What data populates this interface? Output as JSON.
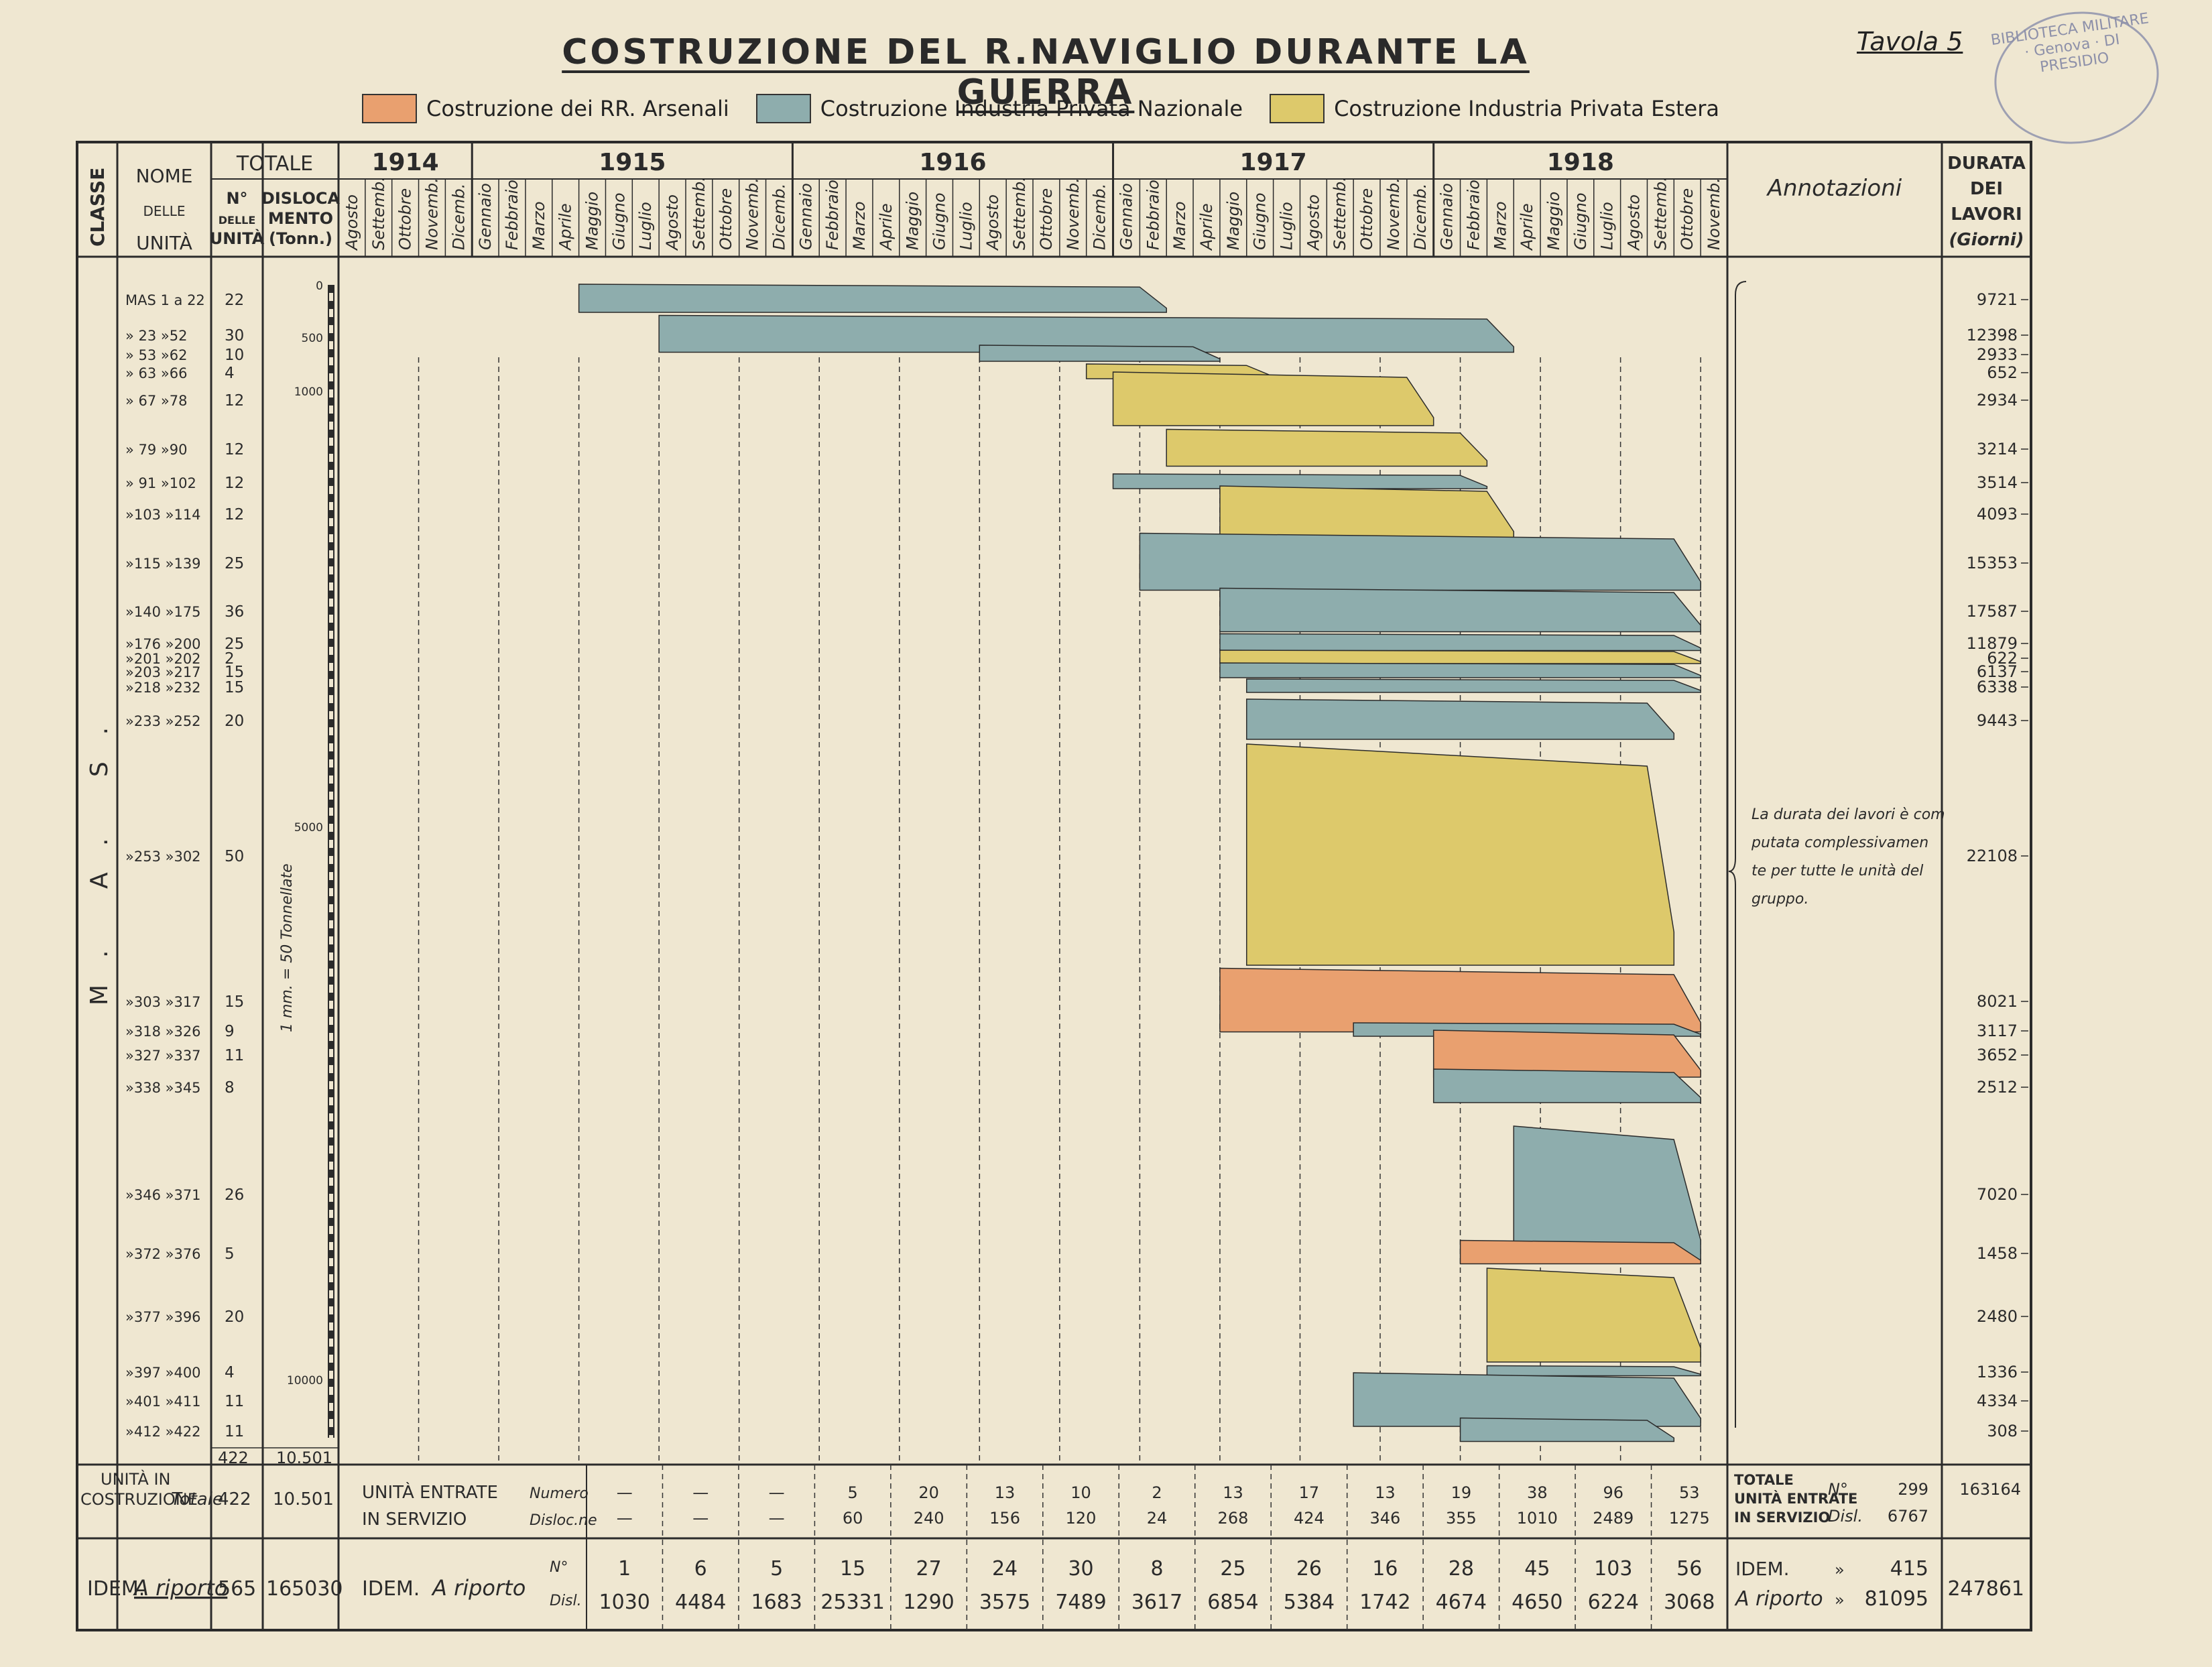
{
  "title": "COSTRUZIONE DEL R.NAVIGLIO DURANTE LA GUERRA",
  "tavola": "Tavola 5",
  "stamp_text": "BIBLIOTECA MILITARE · Genova · DI PRESIDIO",
  "legend": [
    {
      "label": "Costruzione dei RR. Arsenali",
      "color": "#e9a06f"
    },
    {
      "label": "Costruzione Industria Privata Nazionale",
      "color": "#8eadad"
    },
    {
      "label": "Costruzione Industria Privata Estera",
      "color": "#ddc96b"
    }
  ],
  "header": {
    "classe": "CLASSE",
    "nome": "NOME",
    "delle": "DELLE",
    "unita": "UNITÀ",
    "totale": "TOTALE",
    "n_delle_unita": "N°\nDELLE\nUNITÀ",
    "dislocamento": "DISLOCA\nMENTO\n(Tonn.)",
    "annotazioni": "Annotazioni",
    "durata": "DURATA\nDEI\nLAVORI\n(Giorni)"
  },
  "years": [
    "1914",
    "1915",
    "1916",
    "1917",
    "1918"
  ],
  "months": [
    "Agosto",
    "Settemb.",
    "Ottobre",
    "Novemb.",
    "Dicemb.",
    "Gennaio",
    "Febbraio",
    "Marzo",
    "Aprile",
    "Maggio",
    "Giugno",
    "Luglio",
    "Agosto",
    "Settemb.",
    "Ottobre",
    "Novemb.",
    "Dicemb.",
    "Gennaio",
    "Febbraio",
    "Marzo",
    "Aprile",
    "Maggio",
    "Giugno",
    "Luglio",
    "Agosto",
    "Settemb.",
    "Ottobre",
    "Novemb.",
    "Dicemb.",
    "Gennaio",
    "Febbraio",
    "Marzo",
    "Aprile",
    "Maggio",
    "Giugno",
    "Luglio",
    "Agosto",
    "Settemb.",
    "Ottobre",
    "Novemb.",
    "Dicemb.",
    "Gennaio",
    "Febbraio",
    "Marzo",
    "Aprile",
    "Maggio",
    "Giugno",
    "Luglio",
    "Agosto",
    "Settemb.",
    "Ottobre",
    "Novemb."
  ],
  "classe_label": "M. A. S.",
  "units": [
    {
      "name": "MAS 1 a 22",
      "n": "22",
      "dur": "9721"
    },
    {
      "name": "» 23 »52",
      "n": "30",
      "dur": "12398"
    },
    {
      "name": "» 53 »62",
      "n": "10",
      "dur": "2933"
    },
    {
      "name": "» 63 »66",
      "n": "4",
      "dur": "652"
    },
    {
      "name": "» 67 »78",
      "n": "12",
      "dur": "2934"
    },
    {
      "name": "» 79 »90",
      "n": "12",
      "dur": "3214"
    },
    {
      "name": "» 91 »102",
      "n": "12",
      "dur": "3514"
    },
    {
      "name": "»103 »114",
      "n": "12",
      "dur": "4093"
    },
    {
      "name": "»115 »139",
      "n": "25",
      "dur": "15353"
    },
    {
      "name": "»140 »175",
      "n": "36",
      "dur": "17587"
    },
    {
      "name": "»176 »200",
      "n": "25",
      "dur": "11879"
    },
    {
      "name": "»201 »202",
      "n": "2",
      "dur": "622"
    },
    {
      "name": "»203 »217",
      "n": "15",
      "dur": "6137"
    },
    {
      "name": "»218 »232",
      "n": "15",
      "dur": "6338"
    },
    {
      "name": "»233 »252",
      "n": "20",
      "dur": "9443"
    },
    {
      "name": "»253 »302",
      "n": "50",
      "dur": "22108"
    },
    {
      "name": "»303 »317",
      "n": "15",
      "dur": "8021"
    },
    {
      "name": "»318 »326",
      "n": "9",
      "dur": "3117"
    },
    {
      "name": "»327 »337",
      "n": "11",
      "dur": "3652"
    },
    {
      "name": "»338 »345",
      "n": "8",
      "dur": "2512"
    },
    {
      "name": "»346 »371",
      "n": "26",
      "dur": "7020"
    },
    {
      "name": "»372 »376",
      "n": "5",
      "dur": "1458"
    },
    {
      "name": "»377 »396",
      "n": "20",
      "dur": "2480"
    },
    {
      "name": "»397 »400",
      "n": "4",
      "dur": "1336"
    },
    {
      "name": "»401 »411",
      "n": "11",
      "dur": "4334"
    },
    {
      "name": "»412 »422",
      "n": "11",
      "dur": "308"
    }
  ],
  "scale": {
    "ticks": [
      "0",
      "500",
      "1000",
      "5000",
      "10000"
    ],
    "note": "1 mm. = 50 Tonnellate"
  },
  "totals_col": {
    "n": "422",
    "disl": "10.501"
  },
  "annotation_note": "La durata dei lavori è com putata complessivamen te per tutte le unità del gruppo.",
  "unita_in_costruzione": {
    "label": "UNITÀ IN COSTRUZIONE",
    "totale_label": "Totale",
    "n": "422",
    "disl": "10.501"
  },
  "entrate_servizio": {
    "label": "UNITÀ ENTRATE IN SERVIZIO",
    "numero_label": "Numero",
    "disloc_label": "Disloc.ne",
    "numero": [
      "—",
      "—",
      "—",
      "5",
      "20",
      "13",
      "10",
      "2",
      "13",
      "17",
      "13",
      "19",
      "38",
      "96",
      "53"
    ],
    "disloc": [
      "",
      "",
      "",
      "60",
      "240",
      "156",
      "120",
      "24",
      "268",
      "424",
      "346",
      "355",
      "1010",
      "2489",
      "1275"
    ],
    "totale_label": "TOTALE UNITÀ ENTRATE IN SERVIZIO",
    "tot_n_label": "N°",
    "tot_n": "299",
    "tot_d_label": "Disl.",
    "tot_d": "6767",
    "durata_tot": "163164"
  },
  "riporto": {
    "label": "IDEM.",
    "label2": "A riporto",
    "n": "565",
    "disl": "165030",
    "n_label": "N°",
    "disl_label": "Disl.",
    "numero": [
      "1",
      "6",
      "5",
      "15",
      "27",
      "24",
      "30",
      "8",
      "25",
      "26",
      "16",
      "28",
      "45",
      "103",
      "56"
    ],
    "disloc": [
      "1030",
      "4484",
      "1683",
      "25331",
      "1290",
      "3575",
      "7489",
      "3617",
      "6854",
      "5384",
      "1742",
      "4674",
      "4650",
      "6224",
      "3068"
    ],
    "tot_label1": "IDEM.",
    "tot_label2": "A riporto",
    "tot_n_label": "»",
    "tot_n": "415",
    "tot_d_label": "»",
    "tot_d": "81095",
    "durata_tot": "247861"
  },
  "chart_data": {
    "type": "gantt",
    "title": "COSTRUZIONE DEL R.NAVIGLIO DURANTE LA GUERRA",
    "x_axis": "months Aug 1914 – Nov 1918",
    "bars": [
      {
        "group": "MAS 1 a 22",
        "type": "nazionale",
        "start": "1915-05",
        "end": "1917-03"
      },
      {
        "group": "» 23 »52",
        "type": "nazionale",
        "start": "1915-08",
        "end": "1918-04"
      },
      {
        "group": "» 53 »62",
        "type": "nazionale",
        "start": "1916-08",
        "end": "1917-05"
      },
      {
        "group": "» 63 »66",
        "type": "estera",
        "start": "1916-12",
        "end": "1917-07"
      },
      {
        "group": "» 67 »78",
        "type": "estera",
        "start": "1917-01",
        "end": "1918-01"
      },
      {
        "group": "» 79 »90",
        "type": "estera",
        "start": "1917-03",
        "end": "1918-03"
      },
      {
        "group": "» 91 »102",
        "type": "nazionale",
        "start": "1917-01",
        "end": "1918-03"
      },
      {
        "group": "»103 »114",
        "type": "estera",
        "start": "1917-05",
        "end": "1918-04"
      },
      {
        "group": "»115 »139",
        "type": "nazionale",
        "start": "1917-02",
        "end": "1918-11"
      },
      {
        "group": "»140 »175",
        "type": "nazionale",
        "start": "1917-05",
        "end": "1918-11"
      },
      {
        "group": "»176 »200",
        "type": "nazionale",
        "start": "1917-05",
        "end": "1918-11"
      },
      {
        "group": "»201 »202",
        "type": "estera",
        "start": "1917-05",
        "end": "1918-11"
      },
      {
        "group": "»203 »217",
        "type": "nazionale",
        "start": "1917-05",
        "end": "1918-11"
      },
      {
        "group": "»218 »232",
        "type": "nazionale",
        "start": "1917-06",
        "end": "1918-11"
      },
      {
        "group": "»233 »252",
        "type": "nazionale",
        "start": "1917-06",
        "end": "1918-10"
      },
      {
        "group": "»253 »302",
        "type": "estera",
        "start": "1917-06",
        "end": "1918-10"
      },
      {
        "group": "»303 »317",
        "type": "arsenali",
        "start": "1917-05",
        "end": "1918-11"
      },
      {
        "group": "»318 »326",
        "type": "nazionale",
        "start": "1917-10",
        "end": "1918-11"
      },
      {
        "group": "»327 »337",
        "type": "arsenali",
        "start": "1918-01",
        "end": "1918-11"
      },
      {
        "group": "»338 »345",
        "type": "nazionale",
        "start": "1918-01",
        "end": "1918-11"
      },
      {
        "group": "»346 »371",
        "type": "nazionale",
        "start": "1918-04",
        "end": "1918-11"
      },
      {
        "group": "»372 »376",
        "type": "arsenali",
        "start": "1918-02",
        "end": "1918-11"
      },
      {
        "group": "»377 »396",
        "type": "estera",
        "start": "1918-03",
        "end": "1918-11"
      },
      {
        "group": "»397 »400",
        "type": "nazionale",
        "start": "1918-03",
        "end": "1918-11"
      },
      {
        "group": "»401 »411",
        "type": "nazionale",
        "start": "1917-10",
        "end": "1918-11"
      },
      {
        "group": "»412 »422",
        "type": "nazionale",
        "start": "1918-02",
        "end": "1918-10"
      }
    ]
  }
}
